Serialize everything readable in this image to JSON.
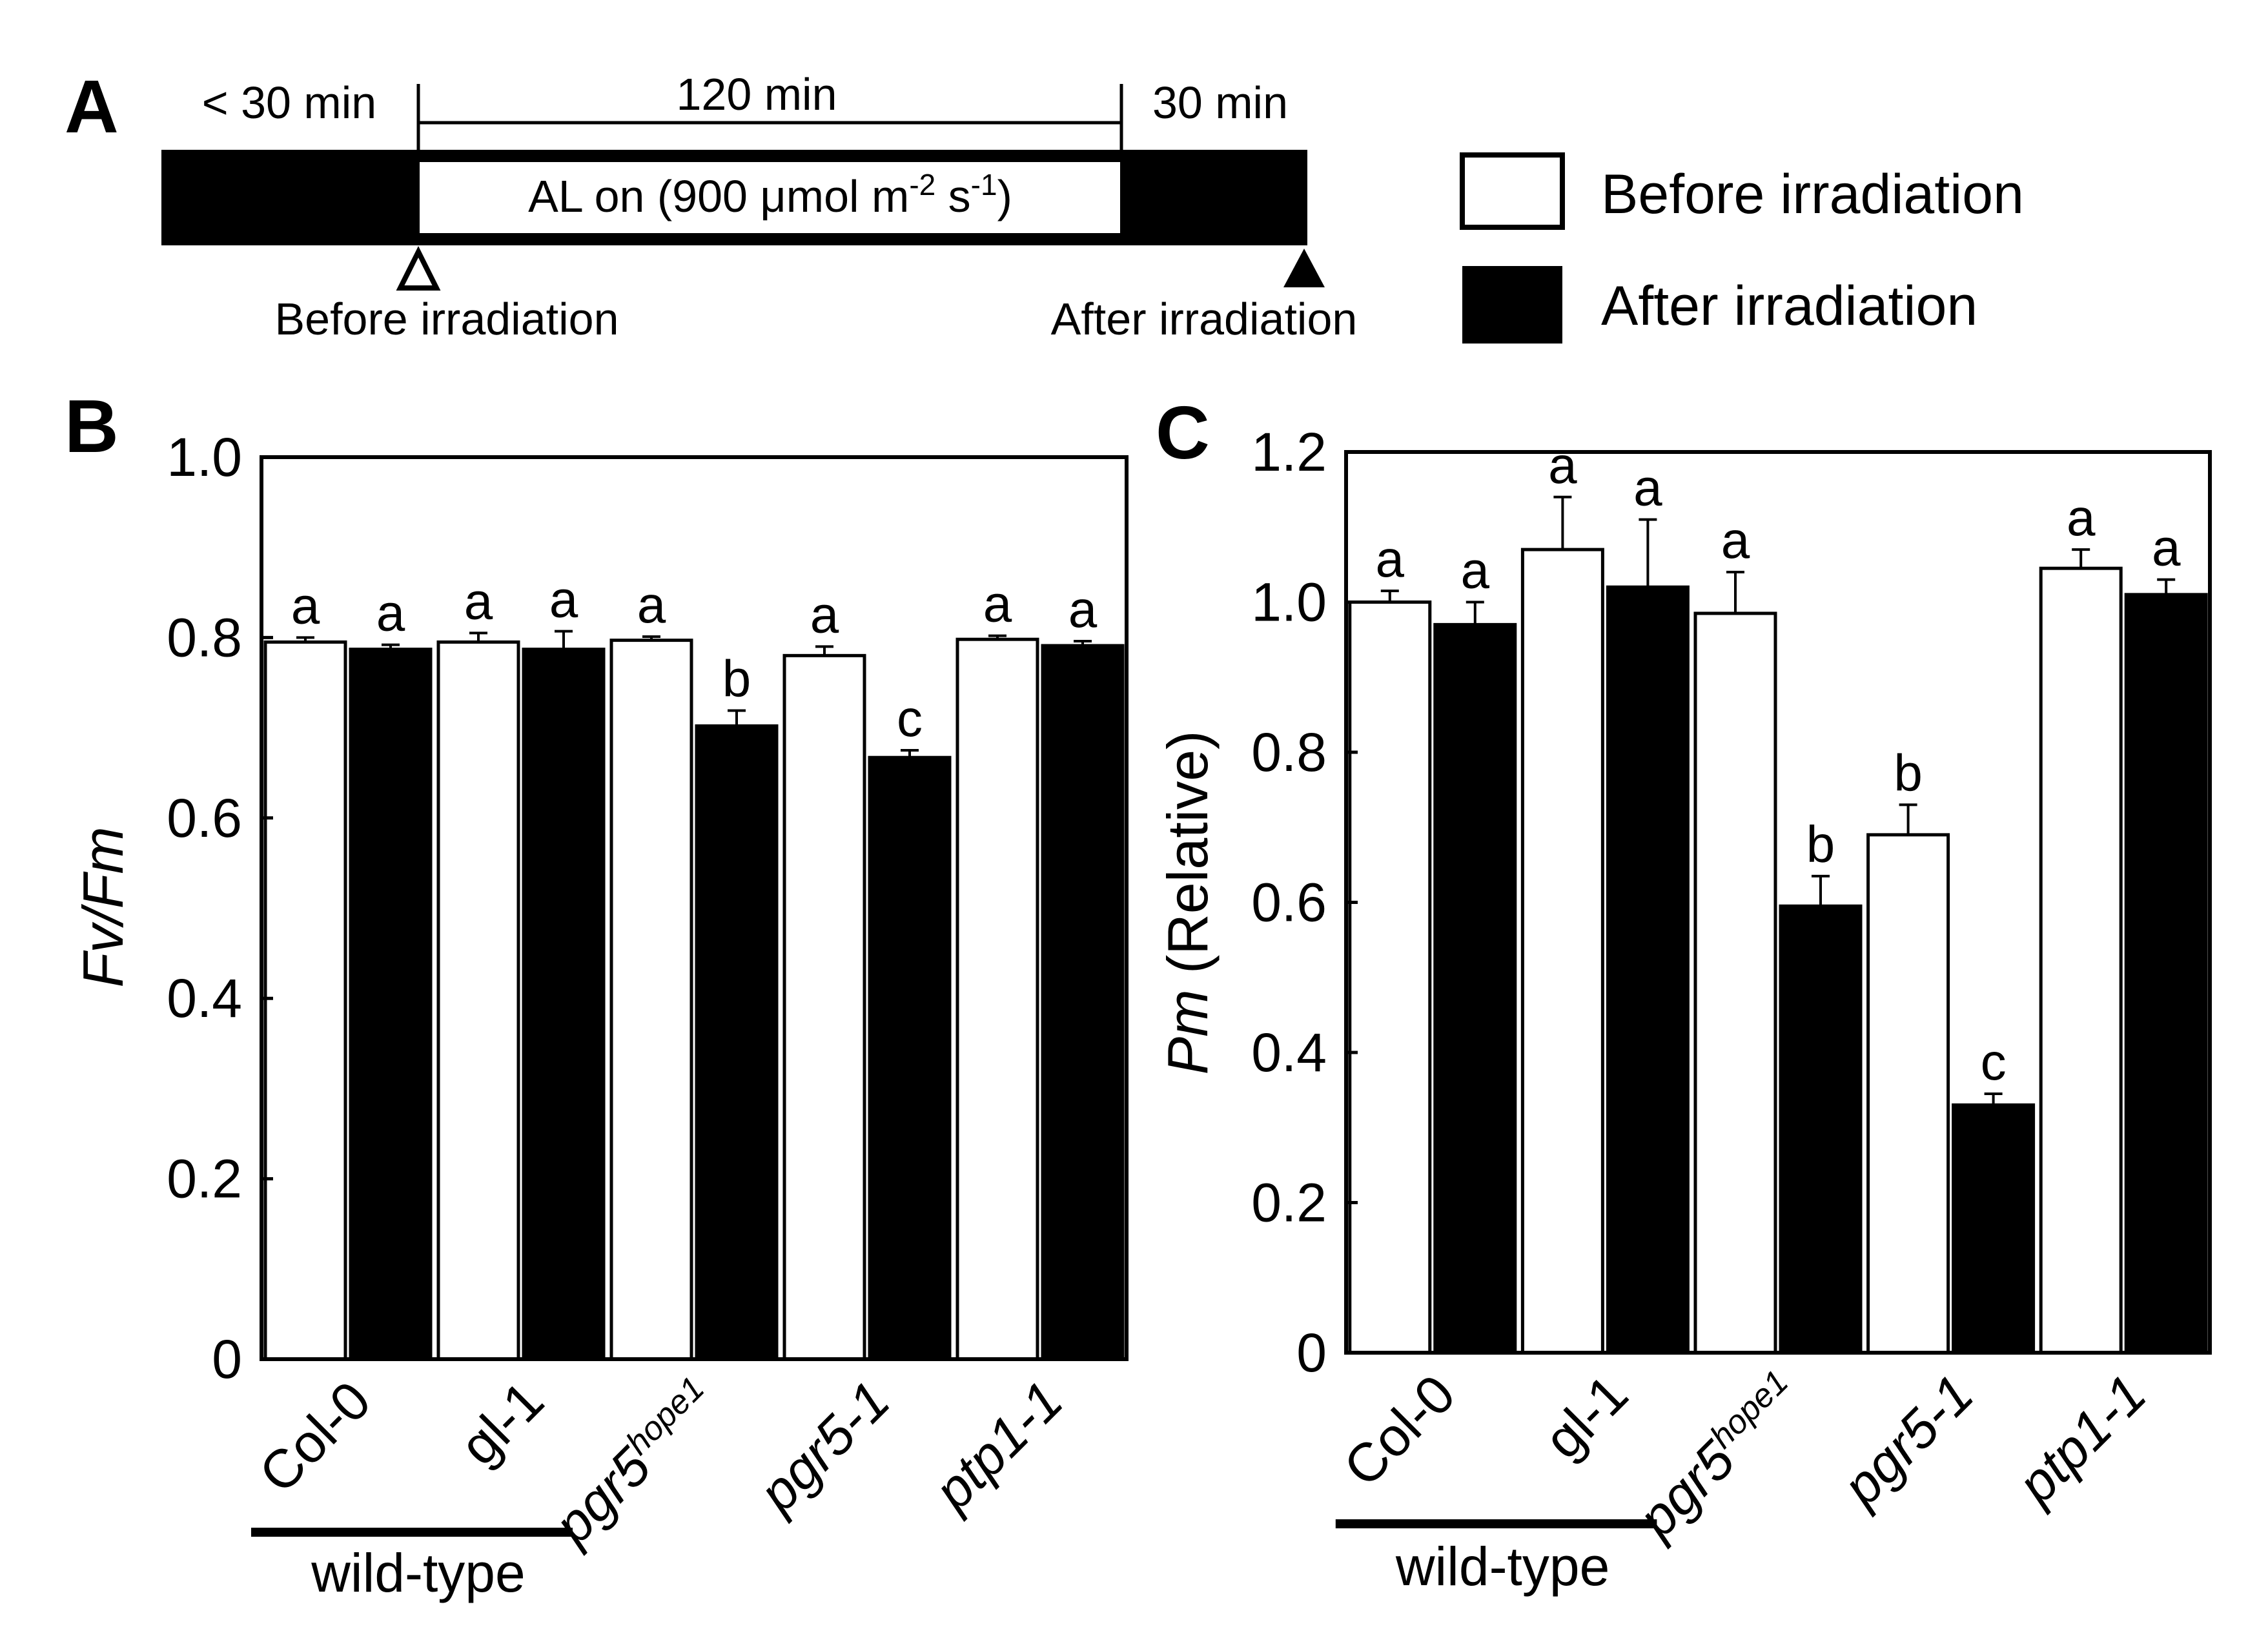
{
  "panel_a": {
    "letter": "A",
    "pre_duration": "< 30 min",
    "main_duration": "120 min",
    "post_duration": "30 min",
    "al_label": "AL on (900 μmol m",
    "al_exp1": "-2",
    "al_mid": " s",
    "al_exp2": "-1",
    "al_end": ")",
    "before_marker": "Before irradiation",
    "after_marker": "After irradiation"
  },
  "legend": {
    "before": "Before irradiation",
    "after": "After irradiation"
  },
  "colors": {
    "before": "#ffffff",
    "after": "#000000",
    "ink": "#000000"
  },
  "group_label": "wild-type",
  "chart_data": [
    {
      "panel": "B",
      "type": "bar",
      "ylabel": "Fv/Fm",
      "ylim": [
        0,
        1.0
      ],
      "yticks": [
        "0",
        "0.2",
        "0.4",
        "0.6",
        "0.8",
        "1.0"
      ],
      "categories": [
        {
          "base": "Col-0",
          "sup": "",
          "italic": false
        },
        {
          "base": "gl-1",
          "sup": "",
          "italic": false
        },
        {
          "base": "pgr5",
          "sup": "hope1",
          "italic": true
        },
        {
          "base": "pgr5-1",
          "sup": "",
          "italic": true
        },
        {
          "base": "ptp1-1",
          "sup": "",
          "italic": true
        }
      ],
      "series": [
        {
          "name": "Before irradiation",
          "values": [
            0.795,
            0.795,
            0.797,
            0.78,
            0.798
          ],
          "errors": [
            0.005,
            0.01,
            0.004,
            0.01,
            0.004
          ],
          "labels": [
            "a",
            "a",
            "a",
            "a",
            "a"
          ]
        },
        {
          "name": "After irradiation",
          "values": [
            0.787,
            0.787,
            0.702,
            0.667,
            0.791
          ],
          "errors": [
            0.005,
            0.02,
            0.017,
            0.008,
            0.005
          ],
          "labels": [
            "a",
            "a",
            "b",
            "c",
            "a"
          ]
        }
      ]
    },
    {
      "panel": "C",
      "type": "bar",
      "ylabel": "Pm",
      "ylabel_suffix": " (Relative)",
      "ylim": [
        0,
        1.2
      ],
      "yticks": [
        "0",
        "0.2",
        "0.4",
        "0.6",
        "0.8",
        "1.0",
        "1.2"
      ],
      "categories": [
        {
          "base": "Col-0",
          "sup": "",
          "italic": false
        },
        {
          "base": "gl-1",
          "sup": "",
          "italic": false
        },
        {
          "base": "pgr5",
          "sup": "hope1",
          "italic": true
        },
        {
          "base": "pgr5-1",
          "sup": "",
          "italic": true
        },
        {
          "base": "ptp1-1",
          "sup": "",
          "italic": true
        }
      ],
      "series": [
        {
          "name": "Before irradiation",
          "values": [
            1.0,
            1.07,
            0.985,
            0.69,
            1.045
          ],
          "errors": [
            0.015,
            0.07,
            0.055,
            0.04,
            0.025
          ],
          "labels": [
            "a",
            "a",
            "a",
            "b",
            "a"
          ]
        },
        {
          "name": "After irradiation",
          "values": [
            0.97,
            1.02,
            0.595,
            0.33,
            1.01
          ],
          "errors": [
            0.03,
            0.09,
            0.04,
            0.015,
            0.02
          ],
          "labels": [
            "a",
            "a",
            "b",
            "c",
            "a"
          ]
        }
      ]
    }
  ]
}
